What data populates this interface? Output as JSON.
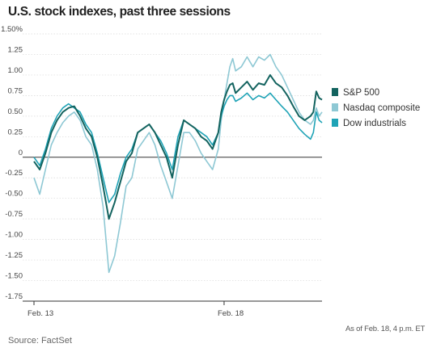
{
  "chart_data": {
    "type": "line",
    "title": "U.S. stock indexes, past three sessions",
    "xlabel": "",
    "ylabel": "",
    "x_ticks": [
      "Feb. 13",
      "Feb. 18"
    ],
    "x_range": [
      0,
      100
    ],
    "x_tick_positions": [
      0,
      66
    ],
    "ylim": [
      -1.75,
      1.5
    ],
    "y_ticks": [
      -1.75,
      -1.5,
      -1.25,
      -1.0,
      -0.75,
      -0.5,
      -0.25,
      0,
      0.25,
      0.5,
      0.75,
      1.0,
      1.25,
      1.5
    ],
    "y_tick_labels": [
      "-1.75",
      "-1.50",
      "-1.25",
      "-1.00",
      "-0.75",
      "-0.50",
      "-0.25",
      "0",
      "0.25",
      "0.50",
      "0.75",
      "1.00",
      "1.25",
      "1.50%"
    ],
    "legend_position": "right",
    "grid": "horizontal",
    "series": [
      {
        "name": "S&P 500",
        "color": "#13635f",
        "x": [
          0,
          2,
          4,
          6,
          8,
          10,
          12,
          14,
          16,
          18,
          20,
          22,
          24,
          26,
          28,
          30,
          32,
          34,
          36,
          38,
          40,
          42,
          44,
          46,
          48,
          50,
          52,
          54,
          56,
          58,
          60,
          62,
          64,
          65,
          66,
          67,
          68,
          69,
          70,
          72,
          74,
          76,
          78,
          80,
          82,
          84,
          86,
          88,
          90,
          92,
          94,
          96,
          97,
          98,
          99,
          100
        ],
        "y": [
          -0.05,
          -0.15,
          0.05,
          0.3,
          0.45,
          0.55,
          0.6,
          0.62,
          0.5,
          0.35,
          0.25,
          0.0,
          -0.35,
          -0.75,
          -0.55,
          -0.3,
          -0.05,
          0.05,
          0.3,
          0.35,
          0.4,
          0.3,
          0.15,
          0.0,
          -0.25,
          0.15,
          0.45,
          0.4,
          0.35,
          0.25,
          0.2,
          0.1,
          0.3,
          0.55,
          0.7,
          0.8,
          0.88,
          0.9,
          0.78,
          0.85,
          0.92,
          0.82,
          0.9,
          0.88,
          1.0,
          0.9,
          0.85,
          0.75,
          0.62,
          0.5,
          0.45,
          0.5,
          0.55,
          0.8,
          0.72,
          0.7
        ]
      },
      {
        "name": "Nasdaq composite",
        "color": "#8ec8d4",
        "x": [
          0,
          2,
          4,
          6,
          8,
          10,
          12,
          14,
          16,
          18,
          20,
          22,
          24,
          26,
          28,
          30,
          32,
          34,
          36,
          38,
          40,
          42,
          44,
          46,
          48,
          50,
          52,
          54,
          56,
          58,
          60,
          62,
          64,
          65,
          66,
          67,
          68,
          69,
          70,
          72,
          74,
          76,
          78,
          80,
          82,
          84,
          86,
          88,
          90,
          92,
          94,
          96,
          97,
          98,
          99,
          100
        ],
        "y": [
          -0.25,
          -0.45,
          -0.15,
          0.15,
          0.3,
          0.42,
          0.5,
          0.55,
          0.45,
          0.25,
          0.15,
          -0.15,
          -0.6,
          -1.4,
          -1.2,
          -0.8,
          -0.35,
          -0.25,
          0.1,
          0.2,
          0.3,
          0.15,
          -0.1,
          -0.3,
          -0.5,
          -0.1,
          0.3,
          0.3,
          0.2,
          0.05,
          -0.05,
          -0.15,
          0.1,
          0.45,
          0.7,
          0.9,
          1.1,
          1.2,
          1.05,
          1.1,
          1.22,
          1.1,
          1.22,
          1.18,
          1.25,
          1.1,
          1.0,
          0.85,
          0.7,
          0.55,
          0.45,
          0.4,
          0.45,
          0.6,
          0.5,
          0.55
        ]
      },
      {
        "name": "Dow industrials",
        "color": "#1fa3b6",
        "x": [
          0,
          2,
          4,
          6,
          8,
          10,
          12,
          14,
          16,
          18,
          20,
          22,
          24,
          26,
          28,
          30,
          32,
          34,
          36,
          38,
          40,
          42,
          44,
          46,
          48,
          50,
          52,
          54,
          56,
          58,
          60,
          62,
          64,
          65,
          66,
          67,
          68,
          69,
          70,
          72,
          74,
          76,
          78,
          80,
          82,
          84,
          86,
          88,
          90,
          92,
          94,
          96,
          97,
          98,
          99,
          100
        ],
        "y": [
          0.0,
          -0.1,
          0.1,
          0.35,
          0.5,
          0.6,
          0.65,
          0.6,
          0.55,
          0.4,
          0.3,
          0.05,
          -0.25,
          -0.55,
          -0.45,
          -0.2,
          0.0,
          0.1,
          0.3,
          0.35,
          0.4,
          0.3,
          0.2,
          0.05,
          -0.15,
          0.25,
          0.45,
          0.4,
          0.35,
          0.3,
          0.25,
          0.15,
          0.3,
          0.5,
          0.62,
          0.7,
          0.75,
          0.75,
          0.68,
          0.72,
          0.78,
          0.7,
          0.75,
          0.72,
          0.78,
          0.7,
          0.62,
          0.55,
          0.45,
          0.35,
          0.28,
          0.22,
          0.3,
          0.55,
          0.45,
          0.42
        ]
      }
    ]
  },
  "footer": {
    "source": "Source: FactSet",
    "as_of": "As of Feb. 18, 4 p.m. ET"
  }
}
